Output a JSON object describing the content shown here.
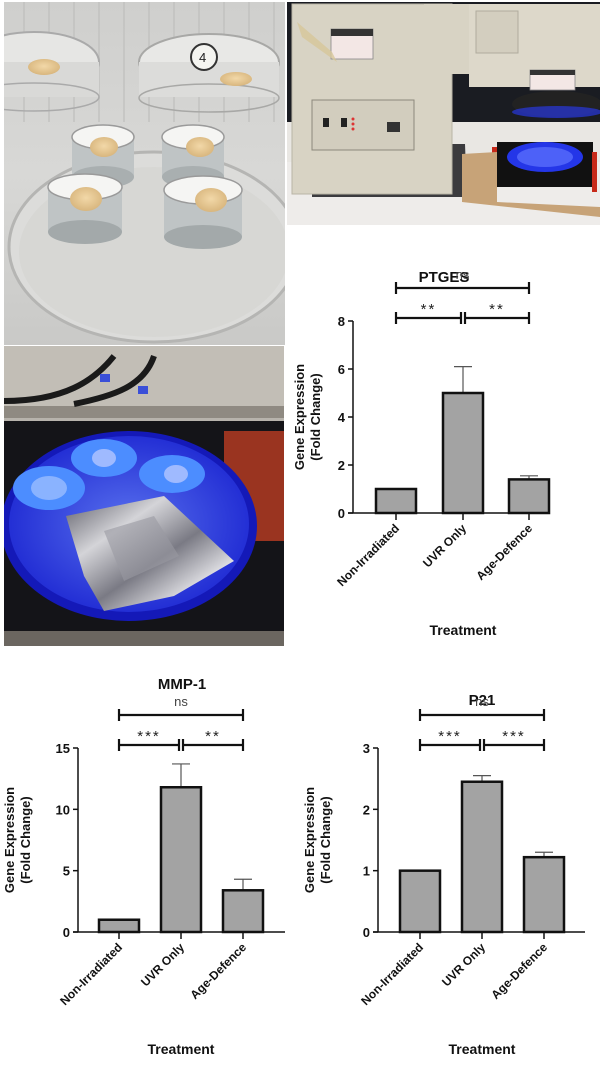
{
  "figure": {
    "photos": [
      {
        "id": "top-left",
        "description": "Skin explant tissue samples in culture inserts inside a petri dish under laminar flow hood",
        "label_on_dish": "4"
      },
      {
        "id": "top-right",
        "description": "UV irradiation solar simulator apparatus with warning labels and sample stage illuminated in blue"
      },
      {
        "id": "bottom-left",
        "description": "Petri dish with three culture inserts under blue UV light beside a crumpled foil packet"
      }
    ]
  },
  "chart_data": [
    {
      "type": "bar",
      "title": "PTGES",
      "xlabel": "Treatment",
      "ylabel": "Gene Expression (Fold Change)",
      "ylabel_lines": [
        "Gene Expression",
        "(Fold Change)"
      ],
      "categories": [
        "Non-Irradiated",
        "UVR Only",
        "Age-Defence"
      ],
      "values": [
        1.0,
        5.0,
        1.4
      ],
      "errors": [
        0,
        1.1,
        0.15
      ],
      "ylim": [
        0,
        8
      ],
      "yticks": [
        0,
        2,
        4,
        6,
        8
      ],
      "grid": false,
      "significance": [
        {
          "from": 0,
          "to": 2,
          "label": "ns"
        },
        {
          "from": 0,
          "to": 1,
          "label": "**"
        },
        {
          "from": 1,
          "to": 2,
          "label": "**"
        }
      ]
    },
    {
      "type": "bar",
      "title": "MMP-1",
      "xlabel": "Treatment",
      "ylabel": "Gene Expression (Fold Change)",
      "ylabel_lines": [
        "Gene Expression",
        "(Fold Change)"
      ],
      "categories": [
        "Non-Irradiated",
        "UVR Only",
        "Age-Defence"
      ],
      "values": [
        1.0,
        11.8,
        3.4
      ],
      "errors": [
        0,
        1.9,
        0.9
      ],
      "ylim": [
        0,
        15
      ],
      "yticks": [
        0,
        5,
        10,
        15
      ],
      "grid": false,
      "significance": [
        {
          "from": 0,
          "to": 2,
          "label": "ns"
        },
        {
          "from": 0,
          "to": 1,
          "label": "***"
        },
        {
          "from": 1,
          "to": 2,
          "label": "**"
        }
      ]
    },
    {
      "type": "bar",
      "title": "P21",
      "xlabel": "Treatment",
      "ylabel": "Gene Expression (Fold Change)",
      "ylabel_lines": [
        "Gene Expression",
        "(Fold Change)"
      ],
      "categories": [
        "Non-Irradiated",
        "UVR Only",
        "Age-Defence"
      ],
      "values": [
        1.0,
        2.45,
        1.22
      ],
      "errors": [
        0,
        0.1,
        0.08
      ],
      "ylim": [
        0,
        3
      ],
      "yticks": [
        0,
        1,
        2,
        3
      ],
      "grid": false,
      "significance": [
        {
          "from": 0,
          "to": 2,
          "label": "ns"
        },
        {
          "from": 0,
          "to": 1,
          "label": "***"
        },
        {
          "from": 1,
          "to": 2,
          "label": "***"
        }
      ]
    }
  ],
  "style": {
    "bar_fill": "#a3a3a3",
    "bar_stroke": "#111111",
    "axis_color": "#111111",
    "uv_blue": "#1f2fe0"
  }
}
